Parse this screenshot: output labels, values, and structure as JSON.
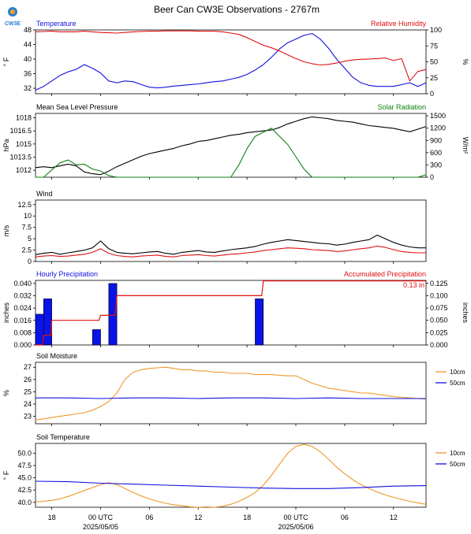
{
  "figure": {
    "title": "Beer Can CW3E Observations - 2767m",
    "logo_text": "CW3E",
    "colors": {
      "blue": "#1010e0",
      "red": "#e01010",
      "green": "#108010",
      "black": "#000000",
      "orange": "#f0962a",
      "bar": "#0a14e6"
    }
  },
  "x_axis": {
    "range_hours": [
      0,
      48
    ],
    "ticks": [
      {
        "h": 2,
        "label": "18",
        "sub": ""
      },
      {
        "h": 8,
        "label": "00 UTC",
        "sub": "2025/05/05"
      },
      {
        "h": 14,
        "label": "06",
        "sub": ""
      },
      {
        "h": 20,
        "label": "12",
        "sub": ""
      },
      {
        "h": 26,
        "label": "18",
        "sub": ""
      },
      {
        "h": 32,
        "label": "00 UTC",
        "sub": "2025/05/06"
      },
      {
        "h": 38,
        "label": "06",
        "sub": ""
      },
      {
        "h": 44,
        "label": "12",
        "sub": ""
      }
    ]
  },
  "chart_data": [
    {
      "type": "line",
      "title_left": "Temperature",
      "title_right": "Relative Humidity",
      "ylabel_left": "° F",
      "ylabel_right": "%",
      "ylim_left": [
        30.5,
        48
      ],
      "ylim_right": [
        0,
        100
      ],
      "yticks_left": [
        32,
        36,
        40,
        44,
        48
      ],
      "yticks_right": [
        0,
        25,
        50,
        75,
        100
      ],
      "series": [
        {
          "axis": "left",
          "color": "blue",
          "x": [
            0,
            1,
            2,
            3,
            4,
            5,
            6,
            7,
            8,
            9,
            10,
            11,
            12,
            13,
            14,
            15,
            16,
            17,
            18,
            19,
            20,
            21,
            22,
            23,
            24,
            25,
            26,
            27,
            28,
            29,
            30,
            31,
            32,
            33,
            34,
            35,
            36,
            37,
            38,
            39,
            40,
            41,
            42,
            43,
            44,
            45,
            46,
            47,
            48
          ],
          "y": [
            31.5,
            32.5,
            34,
            35.5,
            36.5,
            37.2,
            38.5,
            37.5,
            36.2,
            34,
            33.5,
            34,
            33.8,
            33,
            32.3,
            32.1,
            32.3,
            32.6,
            32.8,
            33,
            33.2,
            33.5,
            33.8,
            34,
            34.5,
            35,
            35.8,
            37,
            38.5,
            40.5,
            42.8,
            44.5,
            45.5,
            46.5,
            47,
            45.5,
            43,
            40,
            37.5,
            35,
            33.5,
            32.8,
            32.5,
            32.5,
            32.5,
            33,
            33.5,
            32.5,
            33.5
          ]
        },
        {
          "axis": "right",
          "color": "red",
          "x": [
            0,
            1,
            2,
            3,
            4,
            5,
            6,
            7,
            8,
            9,
            10,
            11,
            12,
            13,
            14,
            15,
            16,
            17,
            18,
            19,
            20,
            21,
            22,
            23,
            24,
            25,
            26,
            27,
            28,
            29,
            30,
            31,
            32,
            33,
            34,
            35,
            36,
            37,
            38,
            39,
            40,
            41,
            42,
            43,
            44,
            45,
            46,
            47,
            48
          ],
          "y": [
            97,
            97.5,
            98,
            97,
            97,
            97,
            98,
            97,
            96,
            95.5,
            95,
            96,
            97,
            97.5,
            98,
            98,
            98.5,
            98.5,
            98.5,
            98.5,
            98,
            98,
            98,
            97,
            95,
            93,
            88,
            82,
            76,
            72,
            67,
            61,
            55,
            50,
            47,
            45,
            46,
            48,
            51,
            53,
            54,
            54.5,
            55,
            56,
            52,
            55,
            20,
            35,
            38
          ]
        }
      ]
    },
    {
      "type": "line",
      "title_left": "Mean Sea Level Pressure",
      "title_right": "Solar Radiation",
      "ylabel_left": "hPa",
      "ylabel_right": "W/m²",
      "ylim_left": [
        1011.2,
        1018.5
      ],
      "ylim_right": [
        0,
        1560
      ],
      "yticks_left": [
        1012.0,
        1013.5,
        1015.0,
        1016.5,
        1018.0
      ],
      "yticks_right": [
        0,
        300,
        600,
        900,
        1200,
        1500
      ],
      "series": [
        {
          "axis": "left",
          "color": "black",
          "x": [
            0,
            1,
            2,
            3,
            4,
            5,
            6,
            7,
            8,
            9,
            10,
            11,
            12,
            13,
            14,
            15,
            16,
            17,
            18,
            19,
            20,
            21,
            22,
            23,
            24,
            25,
            26,
            27,
            28,
            29,
            30,
            31,
            32,
            33,
            34,
            35,
            36,
            37,
            38,
            39,
            40,
            41,
            42,
            43,
            44,
            45,
            46,
            47,
            48
          ],
          "y": [
            1012.3,
            1012.4,
            1012.3,
            1012.5,
            1012.7,
            1012.5,
            1011.8,
            1011.6,
            1011.5,
            1011.9,
            1012.4,
            1012.8,
            1013.2,
            1013.6,
            1013.9,
            1014.1,
            1014.3,
            1014.5,
            1014.8,
            1015.0,
            1015.3,
            1015.4,
            1015.6,
            1015.8,
            1016.0,
            1016.1,
            1016.3,
            1016.4,
            1016.5,
            1016.6,
            1016.9,
            1017.3,
            1017.6,
            1017.9,
            1018.1,
            1018.0,
            1017.9,
            1017.7,
            1017.6,
            1017.5,
            1017.3,
            1017.1,
            1017.0,
            1016.9,
            1016.8,
            1016.6,
            1016.4,
            1016.7,
            1017.0
          ]
        },
        {
          "axis": "right",
          "color": "green",
          "x": [
            0,
            1,
            2,
            3,
            4,
            5,
            6,
            7,
            8,
            9,
            10,
            11,
            12,
            13,
            14,
            15,
            16,
            17,
            18,
            19,
            20,
            21,
            22,
            23,
            24,
            25,
            26,
            27,
            28,
            29,
            30,
            31,
            32,
            33,
            34,
            35,
            36,
            37,
            38,
            39,
            40,
            41,
            42,
            43,
            44,
            45,
            46,
            47,
            48
          ],
          "y": [
            0,
            0,
            180,
            350,
            420,
            300,
            320,
            200,
            150,
            40,
            0,
            0,
            0,
            0,
            0,
            0,
            0,
            0,
            0,
            0,
            0,
            0,
            0,
            0,
            0,
            300,
            700,
            1000,
            1100,
            1200,
            1000,
            800,
            500,
            200,
            0,
            0,
            0,
            0,
            0,
            0,
            0,
            0,
            0,
            0,
            0,
            0,
            0,
            0,
            60
          ]
        }
      ]
    },
    {
      "type": "line",
      "title_left": "Wind",
      "ylabel_left": "m/s",
      "ylim_left": [
        0,
        13.5
      ],
      "yticks_left": [
        0.0,
        2.5,
        5.0,
        7.5,
        10.0,
        12.5
      ],
      "series": [
        {
          "axis": "left",
          "color": "black",
          "x": [
            0,
            1,
            2,
            3,
            4,
            5,
            6,
            7,
            8,
            9,
            10,
            11,
            12,
            13,
            14,
            15,
            16,
            17,
            18,
            19,
            20,
            21,
            22,
            23,
            24,
            25,
            26,
            27,
            28,
            29,
            30,
            31,
            32,
            33,
            34,
            35,
            36,
            37,
            38,
            39,
            40,
            41,
            42,
            43,
            44,
            45,
            46,
            47,
            48
          ],
          "y": [
            1.5,
            1.8,
            2.0,
            1.6,
            1.9,
            2.2,
            2.5,
            3.0,
            4.5,
            2.8,
            2.0,
            1.8,
            1.7,
            1.9,
            2.1,
            2.2,
            1.8,
            1.6,
            2.0,
            2.2,
            2.4,
            2.1,
            2.0,
            2.3,
            2.6,
            2.8,
            3.0,
            3.3,
            3.8,
            4.2,
            4.5,
            4.8,
            4.6,
            4.4,
            4.2,
            4.0,
            3.9,
            3.6,
            3.8,
            4.2,
            4.5,
            4.8,
            5.8,
            5.0,
            4.2,
            3.6,
            3.2,
            3.0,
            3.0
          ]
        },
        {
          "axis": "left",
          "color": "red",
          "x": [
            0,
            1,
            2,
            3,
            4,
            5,
            6,
            7,
            8,
            9,
            10,
            11,
            12,
            13,
            14,
            15,
            16,
            17,
            18,
            19,
            20,
            21,
            22,
            23,
            24,
            25,
            26,
            27,
            28,
            29,
            30,
            31,
            32,
            33,
            34,
            35,
            36,
            37,
            38,
            39,
            40,
            41,
            42,
            43,
            44,
            45,
            46,
            47,
            48
          ],
          "y": [
            1.0,
            1.2,
            1.3,
            1.1,
            1.2,
            1.4,
            1.6,
            2.0,
            2.8,
            1.8,
            1.3,
            1.1,
            1.0,
            1.2,
            1.3,
            1.4,
            1.1,
            1.0,
            1.3,
            1.4,
            1.5,
            1.3,
            1.2,
            1.4,
            1.6,
            1.7,
            1.9,
            2.1,
            2.4,
            2.6,
            2.8,
            3.0,
            2.9,
            2.8,
            2.6,
            2.5,
            2.4,
            2.2,
            2.3,
            2.6,
            2.8,
            3.0,
            3.4,
            3.1,
            2.6,
            2.2,
            2.0,
            1.9,
            1.9
          ]
        }
      ]
    },
    {
      "type": "bar",
      "title_left": "Hourly Precipitation",
      "title_right": "Accumulated Precipitation",
      "annotation": "0.13 in",
      "ylabel_left": "inches",
      "ylabel_right": "inches",
      "ylim_left": [
        0,
        0.042
      ],
      "ylim_right": [
        0,
        0.131
      ],
      "yticks_left": [
        0.0,
        0.008,
        0.016,
        0.024,
        0.032,
        0.04
      ],
      "yticks_left_labels": [
        "0.000",
        "0.008",
        "0.016",
        "0.024",
        "0.032",
        "0.040"
      ],
      "yticks_right": [
        0.0,
        0.025,
        0.05,
        0.075,
        0.1,
        0.125
      ],
      "yticks_right_labels": [
        "0.000",
        "0.025",
        "0.050",
        "0.075",
        "0.100",
        "0.125"
      ],
      "bars": [
        {
          "x": 0.5,
          "value": 0.02
        },
        {
          "x": 1.5,
          "value": 0.03
        },
        {
          "x": 7.5,
          "value": 0.01
        },
        {
          "x": 9.5,
          "value": 0.04
        },
        {
          "x": 27.5,
          "value": 0.03
        }
      ],
      "accumulated": {
        "x": [
          0,
          0.9,
          1,
          1.9,
          2,
          7.8,
          8,
          9.8,
          10,
          27.8,
          28,
          48
        ],
        "y": [
          0,
          0,
          0.02,
          0.02,
          0.05,
          0.05,
          0.06,
          0.06,
          0.1,
          0.1,
          0.13,
          0.13
        ]
      }
    },
    {
      "type": "line",
      "title_left": "Soil Moisture",
      "ylabel_left": "%",
      "ylim_left": [
        22.4,
        27.4
      ],
      "yticks_left": [
        23,
        24,
        25,
        26,
        27
      ],
      "legend": [
        "10cm",
        "50cm"
      ],
      "series": [
        {
          "name": "10cm",
          "color": "orange",
          "x": [
            0,
            1,
            2,
            3,
            4,
            5,
            6,
            7,
            8,
            9,
            10,
            11,
            12,
            13,
            14,
            15,
            16,
            17,
            18,
            19,
            20,
            21,
            22,
            23,
            24,
            25,
            26,
            27,
            28,
            29,
            30,
            31,
            32,
            33,
            34,
            35,
            36,
            37,
            38,
            39,
            40,
            41,
            42,
            43,
            44,
            45,
            46,
            47,
            48
          ],
          "y": [
            22.7,
            22.8,
            22.9,
            23.0,
            23.1,
            23.2,
            23.3,
            23.5,
            23.8,
            24.2,
            24.9,
            26.0,
            26.6,
            26.8,
            26.9,
            26.95,
            27.0,
            26.9,
            26.8,
            26.8,
            26.7,
            26.7,
            26.6,
            26.6,
            26.5,
            26.5,
            26.5,
            26.4,
            26.4,
            26.4,
            26.35,
            26.3,
            26.3,
            26.0,
            25.7,
            25.5,
            25.3,
            25.2,
            25.1,
            25.0,
            24.9,
            24.9,
            24.8,
            24.7,
            24.6,
            24.55,
            24.5,
            24.45,
            24.4
          ]
        },
        {
          "name": "50cm",
          "color": "blue",
          "x": [
            0,
            4,
            8,
            12,
            16,
            20,
            24,
            28,
            32,
            36,
            40,
            44,
            48
          ],
          "y": [
            24.5,
            24.5,
            24.45,
            24.5,
            24.5,
            24.45,
            24.5,
            24.5,
            24.45,
            24.5,
            24.45,
            24.45,
            24.45
          ]
        }
      ]
    },
    {
      "type": "line",
      "title_left": "Soil Temperature",
      "ylabel_left": "° F",
      "ylim_left": [
        39.0,
        52.0
      ],
      "yticks_left": [
        40.0,
        42.5,
        45.0,
        47.5,
        50.0
      ],
      "yticks_left_labels": [
        "40.0",
        "42.5",
        "45.0",
        "47.5",
        "50.0"
      ],
      "legend": [
        "10cm",
        "50cm"
      ],
      "series": [
        {
          "name": "10cm",
          "color": "orange",
          "x": [
            0,
            1,
            2,
            3,
            4,
            5,
            6,
            7,
            8,
            9,
            10,
            11,
            12,
            13,
            14,
            15,
            16,
            17,
            18,
            19,
            20,
            21,
            22,
            23,
            24,
            25,
            26,
            27,
            28,
            29,
            30,
            31,
            32,
            33,
            34,
            35,
            36,
            37,
            38,
            39,
            40,
            41,
            42,
            43,
            44,
            45,
            46,
            47,
            48
          ],
          "y": [
            40.1,
            40.2,
            40.4,
            40.7,
            41.2,
            41.8,
            42.4,
            43.0,
            43.6,
            44.0,
            43.6,
            42.8,
            42.0,
            41.3,
            40.7,
            40.2,
            39.8,
            39.5,
            39.3,
            39.1,
            39.0,
            38.9,
            39.0,
            39.2,
            39.6,
            40.2,
            41.0,
            42.0,
            43.5,
            45.5,
            47.8,
            50.0,
            51.4,
            51.8,
            51.4,
            50.3,
            48.8,
            47.2,
            45.8,
            44.6,
            43.6,
            42.8,
            42.1,
            41.5,
            41.0,
            40.6,
            40.2,
            39.9,
            39.6
          ]
        },
        {
          "name": "50cm",
          "color": "blue",
          "x": [
            0,
            4,
            8,
            12,
            16,
            20,
            24,
            28,
            32,
            36,
            40,
            44,
            48
          ],
          "y": [
            44.3,
            44.2,
            43.9,
            43.7,
            43.5,
            43.3,
            43.1,
            42.9,
            42.8,
            42.8,
            43.0,
            43.3,
            43.4
          ]
        }
      ]
    }
  ]
}
